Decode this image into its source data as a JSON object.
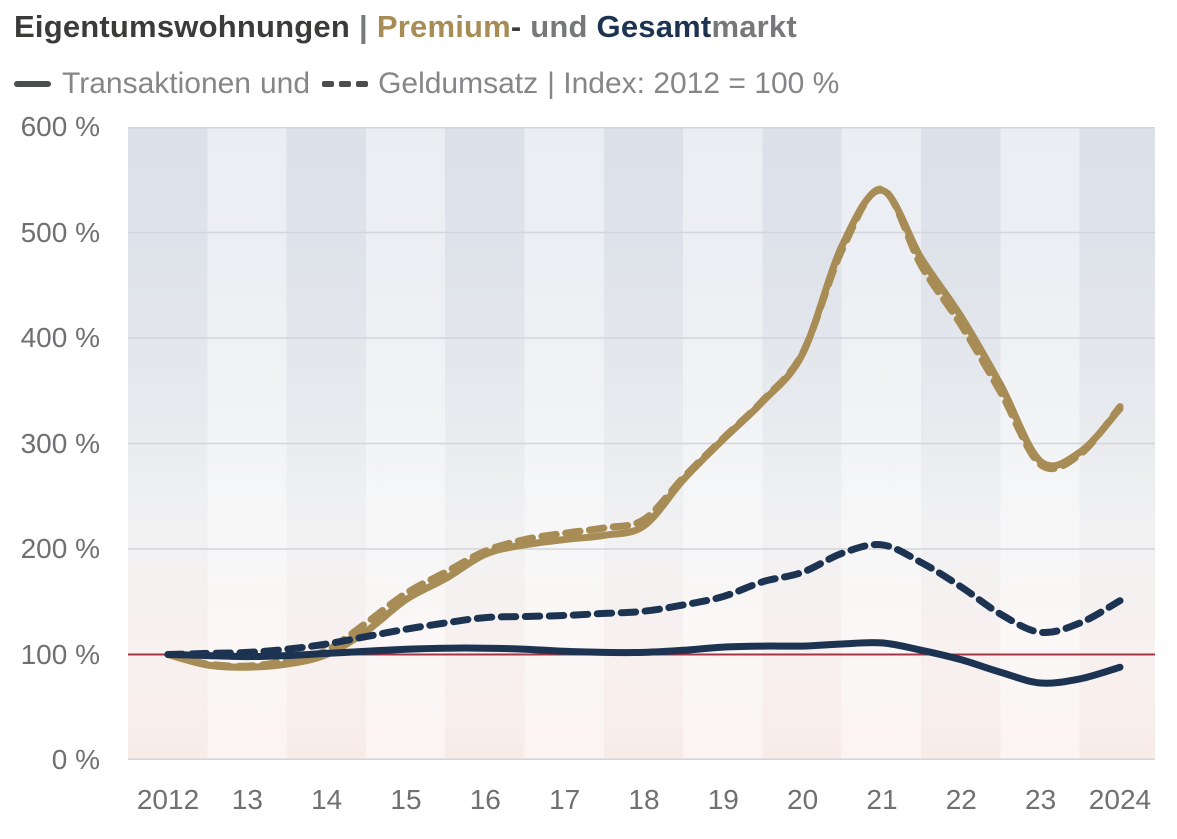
{
  "title": {
    "part_market": "Eigentumswohnungen",
    "separator": "|",
    "part_premium": "Premium",
    "hyphen": "-",
    "part_und": " und ",
    "part_gesamt": "Gesamt",
    "part_markt": "markt"
  },
  "subtitle": {
    "solid_label": "Transaktionen",
    "connector": "und",
    "dashed_label": "Geldumsatz",
    "suffix": "| Index: 2012 = 100 %"
  },
  "icons": {
    "legend_solid": "solid-line-icon",
    "legend_dashed": "dashed-line-icon"
  },
  "colors": {
    "premium_gold": "#A88C55",
    "gesamt_navy": "#1C3352",
    "baseline_red": "#A43546",
    "grid_gray": "#D2D5D9",
    "axis_text": "#6F7073",
    "title_dark": "#3B3B3A",
    "text_gray": "#77787B",
    "subtitle_gray": "#85868A",
    "legend_icon_dark": "#4C4D4F"
  },
  "chart_data": {
    "type": "line",
    "title": "Eigentumswohnungen | Premium- und Gesamtmarkt",
    "subtitle": "Transaktionen und Geldumsatz | Index: 2012 = 100 %",
    "xlabel": "",
    "ylabel": "",
    "ylim": [
      0,
      600
    ],
    "grid": true,
    "y_ticks": [
      0,
      100,
      200,
      300,
      400,
      500,
      600
    ],
    "y_tick_labels": [
      "0 %",
      "100 %",
      "200 %",
      "300 %",
      "400 %",
      "500 %",
      "600 %"
    ],
    "x_ticks": [
      2012,
      2013,
      2014,
      2015,
      2016,
      2017,
      2018,
      2019,
      2020,
      2021,
      2022,
      2023,
      2024
    ],
    "x_tick_labels": [
      "2012",
      "13",
      "14",
      "15",
      "16",
      "17",
      "18",
      "19",
      "20",
      "21",
      "22",
      "23",
      "2024"
    ],
    "baseline": {
      "value": 100,
      "label": "Index: 2012 = 100 %"
    },
    "x": [
      2012,
      2012.5,
      2013,
      2013.5,
      2014,
      2014.5,
      2015,
      2015.5,
      2016,
      2016.5,
      2017,
      2017.5,
      2018,
      2018.5,
      2019,
      2019.5,
      2020,
      2020.5,
      2021,
      2021.5,
      2022,
      2022.5,
      2023,
      2023.5,
      2024
    ],
    "series": [
      {
        "id": "premium-transaktionen",
        "name": "Premium Transaktionen",
        "line_style": "solid",
        "color": "#A88C55",
        "values": [
          100,
          90,
          88,
          91,
          100,
          122,
          152,
          172,
          195,
          204,
          209,
          213,
          222,
          266,
          304,
          340,
          385,
          488,
          540,
          475,
          420,
          355,
          283,
          292,
          333
        ]
      },
      {
        "id": "premium-geldumsatz",
        "name": "Premium Geldumsatz",
        "line_style": "dashed",
        "color": "#A88C55",
        "values": [
          100,
          91,
          89,
          94,
          104,
          130,
          158,
          178,
          198,
          209,
          215,
          220,
          228,
          268,
          305,
          341,
          386,
          484,
          541,
          468,
          412,
          348,
          280,
          290,
          335
        ]
      },
      {
        "id": "gesamtmarkt-geldumsatz",
        "name": "Gesamtmarkt Geldumsatz",
        "line_style": "dashed",
        "color": "#1C3352",
        "values": [
          100,
          101,
          102,
          105,
          110,
          117,
          124,
          130,
          135,
          136,
          137,
          139,
          141,
          147,
          155,
          169,
          178,
          196,
          204,
          187,
          164,
          138,
          121,
          130,
          151
        ]
      },
      {
        "id": "gesamtmarkt-transaktionen",
        "name": "Gesamtmarkt Transaktionen",
        "line_style": "solid",
        "color": "#1C3352",
        "values": [
          100,
          99,
          98,
          99,
          101,
          103,
          105,
          106,
          106,
          105,
          103,
          102,
          102,
          104,
          107,
          108,
          108,
          110,
          111,
          104,
          95,
          83,
          73,
          77,
          88
        ]
      }
    ]
  }
}
